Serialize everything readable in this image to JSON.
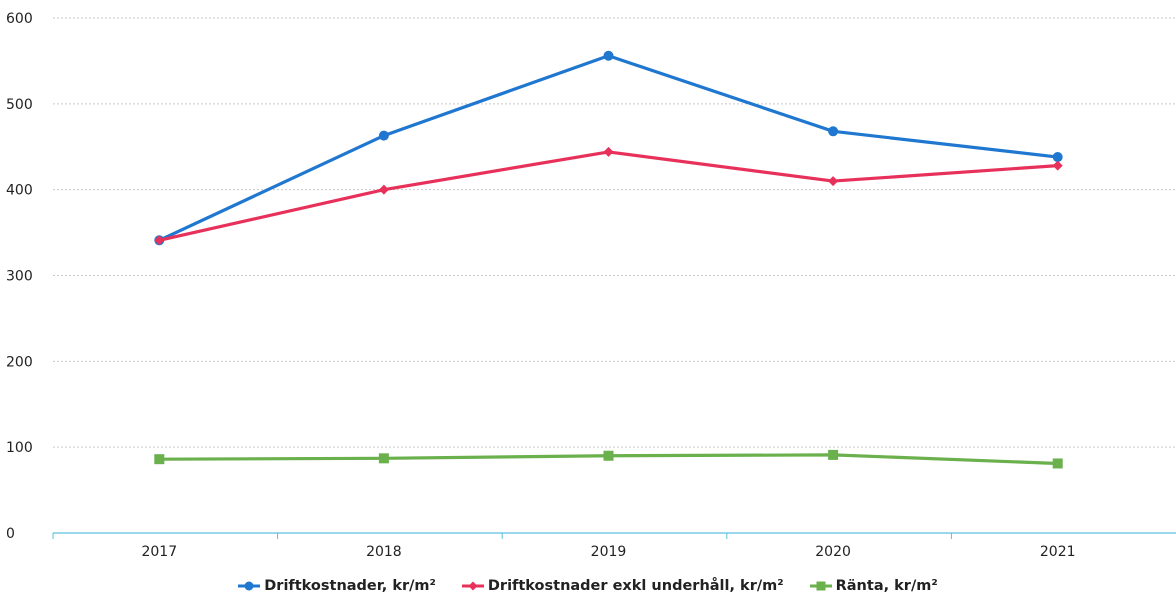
{
  "chart_data": {
    "type": "line",
    "categories": [
      "2017",
      "2018",
      "2019",
      "2020",
      "2021"
    ],
    "series": [
      {
        "name": "Driftkostnader, kr/m²",
        "values": [
          341,
          463,
          556,
          468,
          438
        ],
        "color": "#1f77d0",
        "marker": "circle"
      },
      {
        "name": "Driftkostnader exkl underhåll, kr/m²",
        "values": [
          341,
          400,
          444,
          410,
          428
        ],
        "color": "#e8315a",
        "marker": "diamond"
      },
      {
        "name": "Ränta, kr/m²",
        "values": [
          86,
          87,
          90,
          91,
          81
        ],
        "color": "#6ab04c",
        "marker": "square"
      }
    ],
    "yticks": [
      "0",
      "100",
      "200",
      "300",
      "400",
      "500",
      "600"
    ],
    "ylim": [
      0,
      600
    ],
    "grid": true,
    "legend_position": "bottom"
  }
}
